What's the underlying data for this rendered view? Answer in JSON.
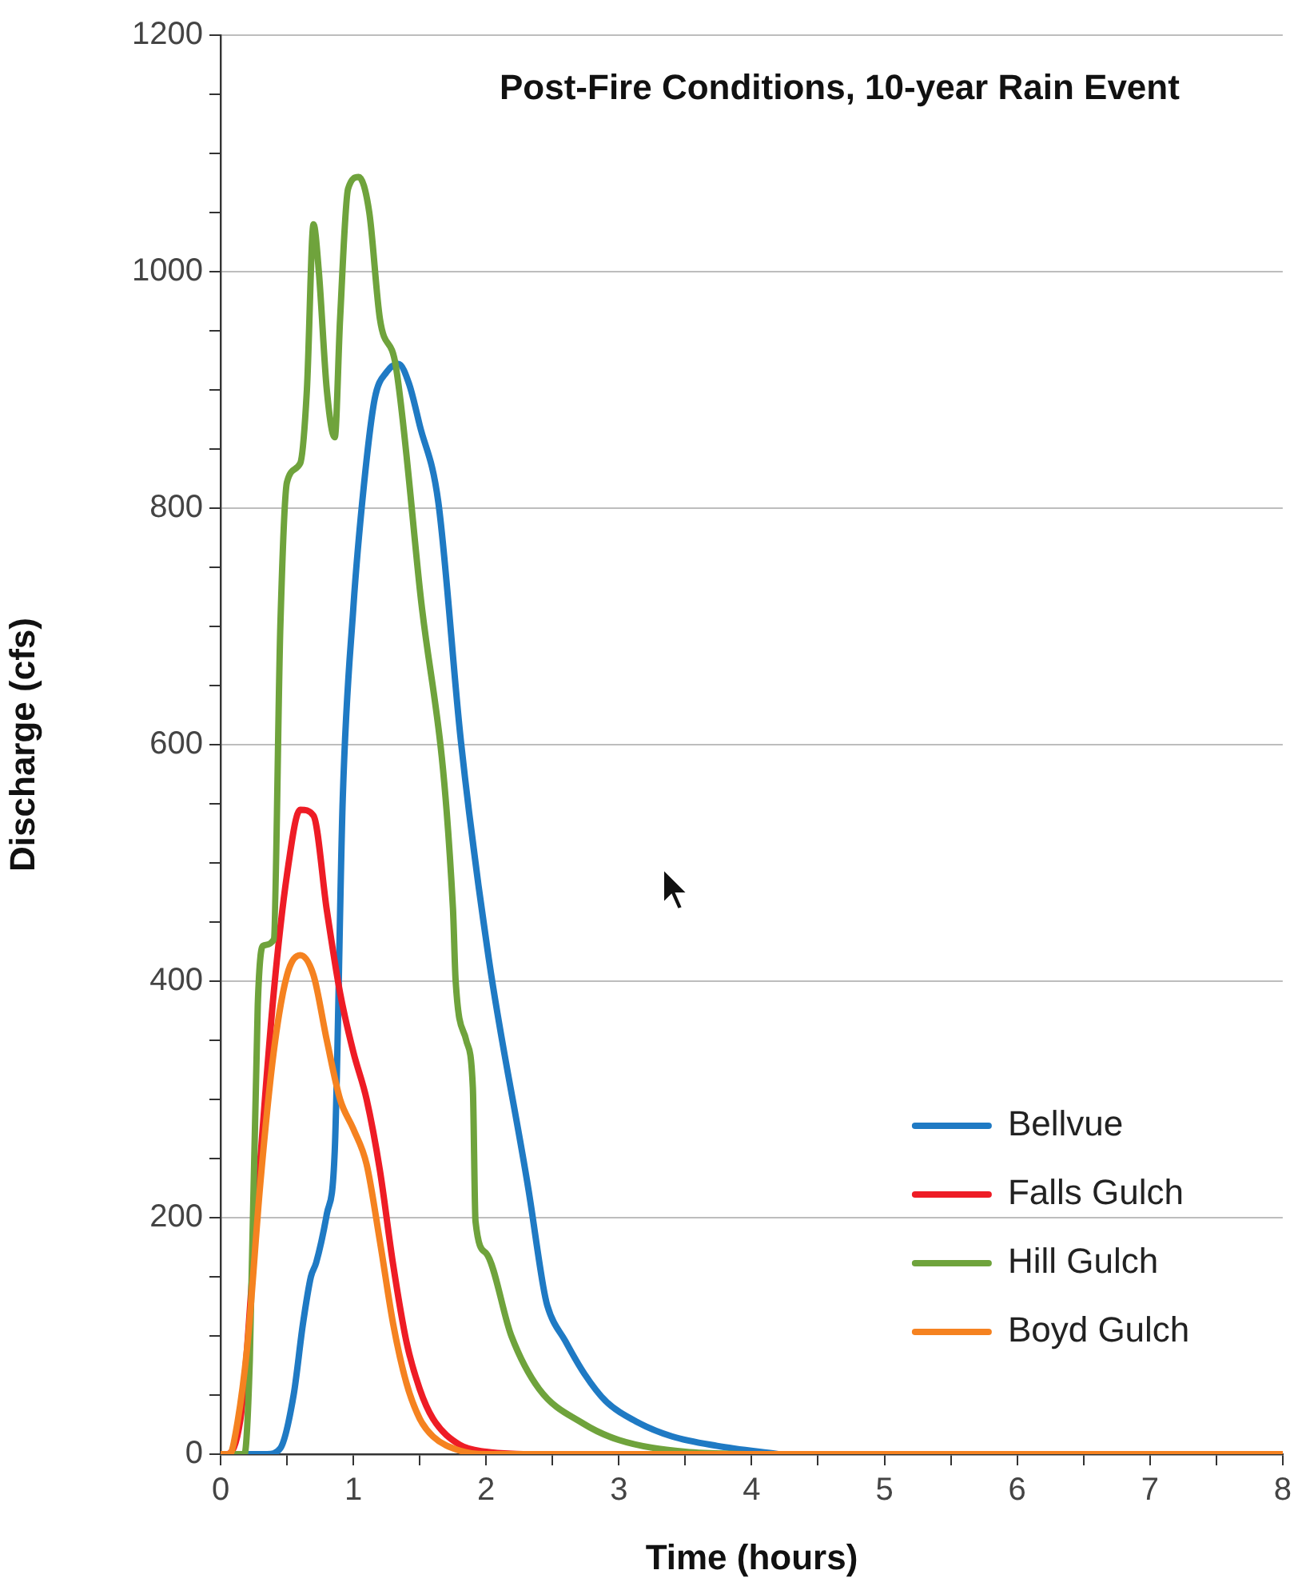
{
  "chart_data": {
    "type": "line",
    "title": "Post-Fire Conditions, 10-year Rain Event",
    "xlabel": "Time (hours)",
    "ylabel": "Discharge (cfs)",
    "xlim": [
      0,
      8
    ],
    "ylim": [
      0,
      1200
    ],
    "xticks": [
      0,
      {
        "value": 0.5,
        "label": null
      },
      1,
      {
        "value": 1.5,
        "label": null
      },
      2,
      {
        "value": 2.5,
        "label": null
      },
      3,
      {
        "value": 3.5,
        "label": null
      },
      4,
      {
        "value": 4.5,
        "label": null
      },
      5,
      {
        "value": 5.5,
        "label": null
      },
      6,
      {
        "value": 6.5,
        "label": null
      },
      7,
      {
        "value": 7.5,
        "label": null
      },
      8
    ],
    "yticks": [
      0,
      {
        "value": 50,
        "label": null
      },
      {
        "value": 100,
        "label": null
      },
      {
        "value": 150,
        "label": null
      },
      200,
      {
        "value": 250,
        "label": null
      },
      {
        "value": 300,
        "label": null
      },
      {
        "value": 350,
        "label": null
      },
      400,
      {
        "value": 450,
        "label": null
      },
      {
        "value": 500,
        "label": null
      },
      {
        "value": 550,
        "label": null
      },
      600,
      {
        "value": 650,
        "label": null
      },
      {
        "value": 700,
        "label": null
      },
      {
        "value": 750,
        "label": null
      },
      800,
      {
        "value": 850,
        "label": null
      },
      {
        "value": 900,
        "label": null
      },
      {
        "value": 950,
        "label": null
      },
      1000,
      {
        "value": 1050,
        "label": null
      },
      {
        "value": 1100,
        "label": null
      },
      {
        "value": 1150,
        "label": null
      },
      1200
    ],
    "grid": "y",
    "legend": "bottom right",
    "marker": "none",
    "line_style": "solid",
    "series": [
      {
        "name": "Bellvue",
        "color": "#1f7ac4",
        "x": [
          0,
          0.35,
          0.45,
          0.55,
          0.62,
          0.68,
          0.72,
          0.8,
          0.86,
          0.92,
          1.0,
          1.08,
          1.16,
          1.25,
          1.34,
          1.42,
          1.5,
          1.64,
          1.81,
          2.02,
          2.32,
          2.43,
          2.46,
          2.6,
          2.74,
          2.9,
          3.14,
          3.4,
          3.74,
          4.2
        ],
        "values": [
          0,
          0,
          5,
          50,
          110,
          150,
          162,
          203,
          257,
          554,
          716,
          820,
          892,
          915,
          922,
          905,
          870,
          805,
          603,
          419,
          223,
          142,
          126,
          95,
          68,
          45,
          27,
          15,
          7,
          0
        ]
      },
      {
        "name": "Falls Gulch",
        "color": "#ee1c25",
        "x": [
          0,
          0.05,
          0.15,
          0.2,
          0.3,
          0.4,
          0.5,
          0.6,
          0.7,
          0.8,
          0.9,
          1.0,
          1.1,
          1.2,
          1.3,
          1.4,
          1.5,
          1.6,
          1.8,
          2.0,
          2.3
        ],
        "values": [
          0,
          0,
          30,
          90,
          250,
          390,
          490,
          545,
          540,
          460,
          390,
          340,
          300,
          240,
          160,
          95,
          55,
          30,
          8,
          2,
          0
        ]
      },
      {
        "name": "Hill Gulch",
        "color": "#6fa33c",
        "x": [
          0,
          0.18,
          0.22,
          0.28,
          0.32,
          0.4,
          0.45,
          0.5,
          0.6,
          0.65,
          0.7,
          0.74,
          0.8,
          0.86,
          0.9,
          0.96,
          1.04,
          1.12,
          1.2,
          1.32,
          1.5,
          1.75,
          1.77,
          1.85,
          1.9,
          1.92,
          2.0,
          2.19,
          2.4,
          2.73,
          3.0,
          3.5,
          4
        ],
        "values": [
          0,
          0,
          80,
          380,
          430,
          435,
          700,
          822,
          838,
          900,
          1040,
          1000,
          900,
          860,
          960,
          1070,
          1080,
          1050,
          960,
          920,
          732,
          462,
          401,
          350,
          310,
          197,
          170,
          100,
          55,
          26,
          12,
          2,
          0
        ]
      },
      {
        "name": "Boyd Gulch",
        "color": "#f58220",
        "x": [
          0,
          0.07,
          0.1,
          0.2,
          0.3,
          0.4,
          0.5,
          0.6,
          0.7,
          0.8,
          0.9,
          1.0,
          1.1,
          1.2,
          1.3,
          1.4,
          1.5,
          1.6,
          1.8,
          2.0,
          3,
          4,
          5,
          6,
          7,
          8
        ],
        "values": [
          0,
          0,
          10,
          90,
          230,
          340,
          405,
          422,
          405,
          350,
          300,
          275,
          245,
          180,
          110,
          60,
          30,
          15,
          3,
          0,
          0,
          0,
          0,
          0,
          0,
          0
        ]
      }
    ]
  }
}
